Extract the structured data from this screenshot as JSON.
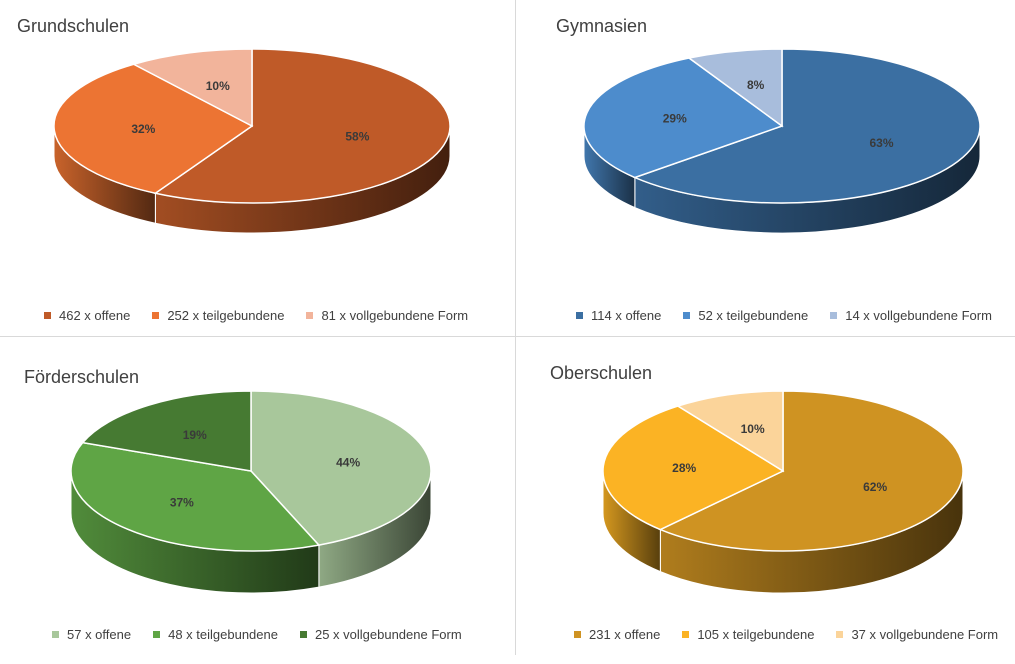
{
  "chart_data": [
    {
      "type": "pie",
      "title": "Grundschulen",
      "categories": [
        "462 x offene",
        "252 x teilgebundene",
        "81 x vollgebundene Form"
      ],
      "values": [
        462,
        252,
        81
      ],
      "data_labels": [
        "58%",
        "32%",
        "10%"
      ],
      "colors": [
        "#bf5a28",
        "#ec7433",
        "#f2b49b"
      ],
      "legend": "bottom"
    },
    {
      "type": "pie",
      "title": "Gymnasien",
      "categories": [
        "114 x offene",
        "52 x teilgebundene",
        "14 x vollgebundene Form"
      ],
      "values": [
        114,
        52,
        14
      ],
      "data_labels": [
        "63%",
        "29%",
        "8%"
      ],
      "colors": [
        "#3b6fa2",
        "#4d8ccc",
        "#a8bddc"
      ],
      "legend": "bottom"
    },
    {
      "type": "pie",
      "title": "Förderschulen",
      "categories": [
        "57 x offene",
        "48 x teilgebundene",
        "25 x vollgebundene Form"
      ],
      "values": [
        57,
        48,
        25
      ],
      "data_labels": [
        "44%",
        "37%",
        "19%"
      ],
      "colors": [
        "#a8c79b",
        "#5fa545",
        "#467a32"
      ],
      "legend": "bottom"
    },
    {
      "type": "pie",
      "title": "Oberschulen",
      "categories": [
        "231 x offene",
        "105 x teilgebundene",
        "37 x vollgebundene Form"
      ],
      "values": [
        231,
        105,
        37
      ],
      "data_labels": [
        "62%",
        "28%",
        "10%"
      ],
      "colors": [
        "#cf9322",
        "#fbb324",
        "#fbd49a"
      ],
      "legend": "bottom"
    }
  ]
}
